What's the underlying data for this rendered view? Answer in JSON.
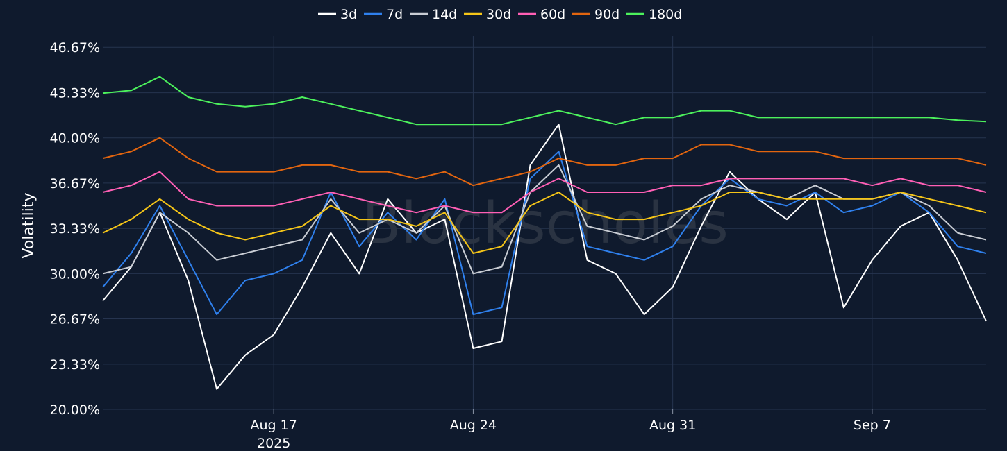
{
  "watermark": "Blockscholes",
  "chart_data": {
    "type": "line",
    "ylabel": "Volatility",
    "ylim": [
      20.0,
      47.5
    ],
    "y_ticks": [
      "20.00%",
      "23.33%",
      "26.67%",
      "30.00%",
      "33.33%",
      "36.67%",
      "40.00%",
      "43.33%",
      "46.67%"
    ],
    "y_tick_values": [
      20.0,
      23.33,
      26.67,
      30.0,
      33.33,
      36.67,
      40.0,
      43.33,
      46.67
    ],
    "x_range": [
      "2025-08-11",
      "2025-09-11"
    ],
    "x_ticks": [
      {
        "date": "2025-08-17",
        "label": "Aug 17",
        "sublabel": "2025"
      },
      {
        "date": "2025-08-24",
        "label": "Aug 24",
        "sublabel": ""
      },
      {
        "date": "2025-08-31",
        "label": "Aug 31",
        "sublabel": ""
      },
      {
        "date": "2025-09-07",
        "label": "Sep 7",
        "sublabel": ""
      }
    ],
    "grid": true,
    "legend_position": "top-center",
    "x": [
      "2025-08-11",
      "2025-08-12",
      "2025-08-13",
      "2025-08-14",
      "2025-08-15",
      "2025-08-16",
      "2025-08-17",
      "2025-08-18",
      "2025-08-19",
      "2025-08-20",
      "2025-08-21",
      "2025-08-22",
      "2025-08-23",
      "2025-08-24",
      "2025-08-25",
      "2025-08-26",
      "2025-08-27",
      "2025-08-28",
      "2025-08-29",
      "2025-08-30",
      "2025-08-31",
      "2025-09-01",
      "2025-09-02",
      "2025-09-03",
      "2025-09-04",
      "2025-09-05",
      "2025-09-06",
      "2025-09-07",
      "2025-09-08",
      "2025-09-09",
      "2025-09-10",
      "2025-09-11"
    ],
    "series": [
      {
        "name": "3d",
        "color": "#ffffff",
        "values": [
          28.0,
          30.5,
          34.5,
          29.5,
          21.5,
          24.0,
          25.5,
          29.0,
          33.0,
          30.0,
          35.5,
          33.0,
          34.0,
          24.5,
          25.0,
          38.0,
          41.0,
          31.0,
          30.0,
          27.0,
          29.0,
          33.5,
          37.5,
          35.5,
          34.0,
          36.0,
          27.5,
          31.0,
          33.5,
          34.5,
          31.0,
          26.5
        ]
      },
      {
        "name": "7d",
        "color": "#2f80ed",
        "values": [
          29.0,
          31.5,
          35.0,
          31.0,
          27.0,
          29.5,
          30.0,
          31.0,
          36.0,
          32.0,
          34.5,
          32.5,
          35.5,
          27.0,
          27.5,
          37.0,
          39.0,
          32.0,
          31.5,
          31.0,
          32.0,
          35.0,
          37.0,
          35.5,
          35.0,
          36.0,
          34.5,
          35.0,
          36.0,
          34.5,
          32.0,
          31.5
        ]
      },
      {
        "name": "14d",
        "color": "#c9cdd4",
        "values": [
          30.0,
          30.5,
          34.5,
          33.0,
          31.0,
          31.5,
          32.0,
          32.5,
          35.5,
          33.0,
          34.0,
          33.0,
          35.0,
          30.0,
          30.5,
          36.0,
          38.0,
          33.5,
          33.0,
          32.5,
          33.5,
          35.5,
          36.5,
          36.0,
          35.5,
          36.5,
          35.5,
          35.5,
          36.0,
          35.0,
          33.0,
          32.5
        ]
      },
      {
        "name": "30d",
        "color": "#f5c518",
        "values": [
          33.0,
          34.0,
          35.5,
          34.0,
          33.0,
          32.5,
          33.0,
          33.5,
          35.0,
          34.0,
          34.0,
          33.5,
          34.5,
          31.5,
          32.0,
          35.0,
          36.0,
          34.5,
          34.0,
          34.0,
          34.5,
          35.0,
          36.0,
          36.0,
          35.5,
          35.5,
          35.5,
          35.5,
          36.0,
          35.5,
          35.0,
          34.5
        ]
      },
      {
        "name": "60d",
        "color": "#ff5fb5",
        "values": [
          36.0,
          36.5,
          37.5,
          35.5,
          35.0,
          35.0,
          35.0,
          35.5,
          36.0,
          35.5,
          35.0,
          34.5,
          35.0,
          34.5,
          34.5,
          36.0,
          37.0,
          36.0,
          36.0,
          36.0,
          36.5,
          36.5,
          37.0,
          37.0,
          37.0,
          37.0,
          37.0,
          36.5,
          37.0,
          36.5,
          36.5,
          36.0
        ]
      },
      {
        "name": "90d",
        "color": "#e2650f",
        "values": [
          38.5,
          39.0,
          40.0,
          38.5,
          37.5,
          37.5,
          37.5,
          38.0,
          38.0,
          37.5,
          37.5,
          37.0,
          37.5,
          36.5,
          37.0,
          37.5,
          38.5,
          38.0,
          38.0,
          38.5,
          38.5,
          39.5,
          39.5,
          39.0,
          39.0,
          39.0,
          38.5,
          38.5,
          38.5,
          38.5,
          38.5,
          38.0
        ]
      },
      {
        "name": "180d",
        "color": "#4cf15c",
        "values": [
          43.3,
          43.5,
          44.5,
          43.0,
          42.5,
          42.3,
          42.5,
          43.0,
          42.5,
          42.0,
          41.5,
          41.0,
          41.0,
          41.0,
          41.0,
          41.5,
          42.0,
          41.5,
          41.0,
          41.5,
          41.5,
          42.0,
          42.0,
          41.5,
          41.5,
          41.5,
          41.5,
          41.5,
          41.5,
          41.5,
          41.3,
          41.2
        ]
      }
    ]
  }
}
